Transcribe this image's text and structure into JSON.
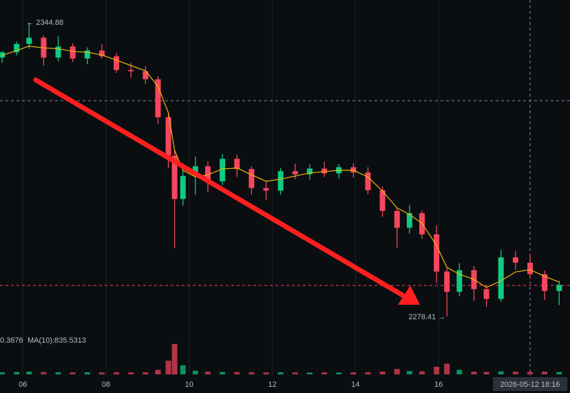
{
  "chart_data": {
    "type": "candlestick",
    "x": [
      5.5,
      5.85,
      6.15,
      6.5,
      6.85,
      7.2,
      7.55,
      7.9,
      8.25,
      8.6,
      8.95,
      9.25,
      9.5,
      9.65,
      9.85,
      10.15,
      10.45,
      10.8,
      11.15,
      11.5,
      11.85,
      12.2,
      12.55,
      12.9,
      13.25,
      13.6,
      13.95,
      14.3,
      14.65,
      15.0,
      15.3,
      15.6,
      15.95,
      16.2,
      16.5,
      16.85,
      17.15,
      17.5,
      17.85,
      18.2,
      18.55,
      18.9
    ],
    "open": [
      2337.0,
      2338.2,
      2340.1,
      2341.5,
      2337.0,
      2339.5,
      2336.8,
      2338.6,
      2337.3,
      2334.2,
      2333.9,
      2332.1,
      2323.5,
      2314.8,
      2305.0,
      2310.2,
      2312.4,
      2309.0,
      2314.1,
      2311.8,
      2307.5,
      2306.9,
      2311.3,
      2310.6,
      2311.9,
      2310.8,
      2312.2,
      2311.0,
      2307.0,
      2302.3,
      2298.5,
      2301.8,
      2297.0,
      2288.6,
      2284.0,
      2288.9,
      2284.6,
      2282.4,
      2291.8,
      2290.6,
      2288.0,
      2284.2
    ],
    "high": [
      2338.5,
      2340.6,
      2344.88,
      2342.0,
      2341.8,
      2340.2,
      2339.3,
      2340.0,
      2338.0,
      2335.8,
      2335.0,
      2332.8,
      2324.5,
      2316.0,
      2311.5,
      2314.6,
      2313.5,
      2315.2,
      2315.0,
      2312.4,
      2309.2,
      2312.0,
      2313.0,
      2312.8,
      2313.4,
      2312.9,
      2313.1,
      2312.2,
      2307.8,
      2303.0,
      2303.6,
      2302.4,
      2299.0,
      2289.4,
      2290.5,
      2289.8,
      2285.5,
      2293.5,
      2293.2,
      2292.6,
      2288.8,
      2286.5
    ],
    "low": [
      2335.8,
      2337.5,
      2339.0,
      2335.2,
      2336.1,
      2336.0,
      2335.5,
      2336.8,
      2333.5,
      2332.4,
      2331.0,
      2322.0,
      2312.0,
      2293.9,
      2303.5,
      2306.0,
      2306.5,
      2308.1,
      2310.0,
      2306.0,
      2304.8,
      2306.0,
      2309.5,
      2309.4,
      2310.0,
      2309.6,
      2309.8,
      2306.1,
      2301.0,
      2294.0,
      2297.2,
      2296.0,
      2286.0,
      2278.41,
      2283.0,
      2282.0,
      2280.6,
      2281.8,
      2289.0,
      2287.1,
      2282.1,
      2281.0
    ],
    "close": [
      2338.2,
      2340.1,
      2341.5,
      2337.0,
      2339.5,
      2336.8,
      2338.6,
      2337.3,
      2334.2,
      2333.9,
      2332.1,
      2323.5,
      2314.8,
      2305.0,
      2310.2,
      2312.4,
      2309.0,
      2314.1,
      2311.8,
      2307.5,
      2306.9,
      2311.3,
      2310.6,
      2311.9,
      2310.8,
      2312.2,
      2311.0,
      2307.0,
      2302.3,
      2298.5,
      2301.8,
      2297.0,
      2288.6,
      2284.0,
      2288.9,
      2284.6,
      2282.4,
      2291.8,
      2290.6,
      2288.0,
      2284.2,
      2285.6
    ],
    "ma": [
      2337.5,
      2338.6,
      2339.6,
      2339.2,
      2339.0,
      2338.4,
      2338.2,
      2337.6,
      2336.4,
      2335.2,
      2334.0,
      2330.5,
      2324.5,
      2316.0,
      2311.5,
      2310.0,
      2310.5,
      2311.8,
      2312.0,
      2310.5,
      2309.0,
      2309.5,
      2310.2,
      2310.9,
      2311.2,
      2311.5,
      2311.5,
      2310.0,
      2306.8,
      2303.0,
      2301.5,
      2299.5,
      2294.5,
      2289.5,
      2288.0,
      2286.8,
      2285.0,
      2286.5,
      2288.5,
      2289.0,
      2287.5,
      2286.2
    ],
    "ma_color": "#f0b90b",
    "up_color": "#0ecb81",
    "down_color": "#f6465d",
    "volume": [
      700,
      800,
      900,
      750,
      700,
      650,
      700,
      650,
      700,
      650,
      700,
      1500,
      4500,
      10000,
      3000,
      1200,
      900,
      800,
      750,
      700,
      650,
      700,
      650,
      600,
      650,
      600,
      650,
      700,
      900,
      1800,
      1100,
      1000,
      2500,
      3500,
      1500,
      900,
      800,
      1000,
      900,
      800,
      900,
      800
    ],
    "volume_ylim": [
      0,
      12000
    ],
    "xlim": [
      5.45,
      19.16
    ],
    "ylim": [
      2275.15,
      2350.03
    ],
    "xticks": [
      {
        "value": 6,
        "label": "06"
      },
      {
        "value": 8,
        "label": "08"
      },
      {
        "value": 10,
        "label": "10"
      },
      {
        "value": 12,
        "label": "12"
      },
      {
        "value": 14,
        "label": "14"
      },
      {
        "value": 16,
        "label": "16"
      }
    ],
    "high_label": "← 2344.88",
    "low_label": "2278.41 →",
    "reference_lines": [
      {
        "value": 2327.25,
        "color": "#848e9c"
      },
      {
        "value": 2285.44,
        "color": "#f6465d"
      }
    ],
    "crosshair": {
      "x": 18.2,
      "label": "2026-05-12 18:16"
    },
    "volume_label": "0.3676",
    "volume_ma_label": "MA(10):835.5313"
  }
}
